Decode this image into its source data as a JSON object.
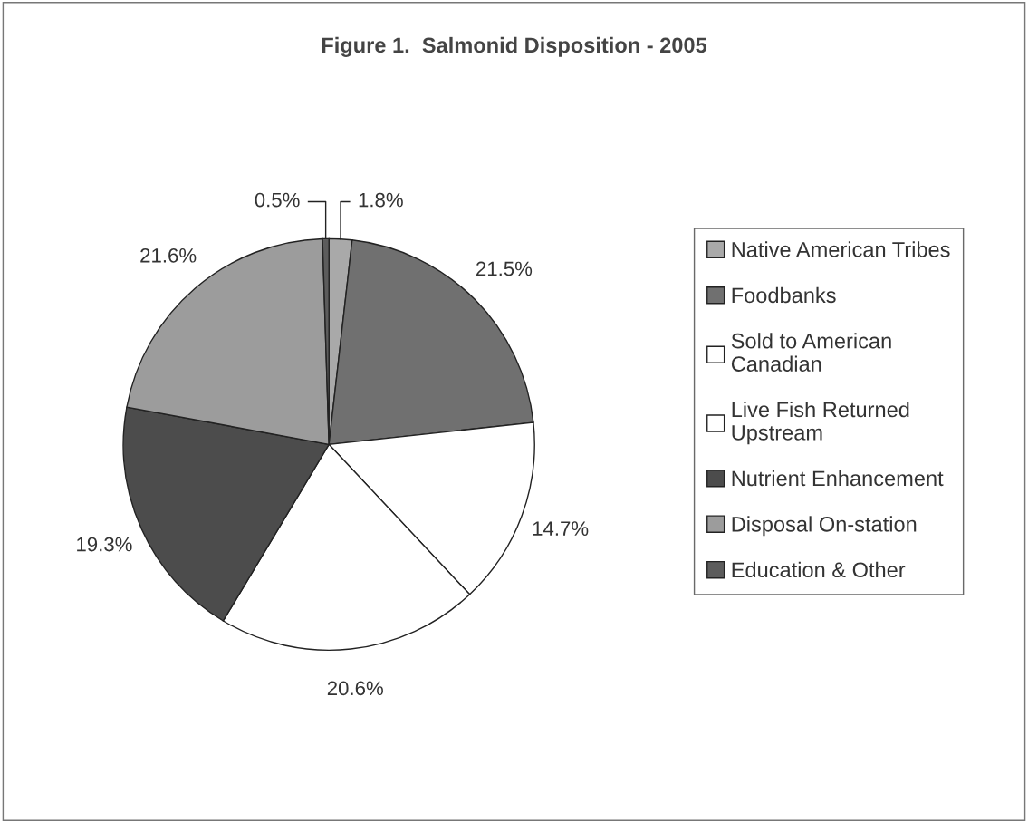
{
  "chart_data": {
    "type": "pie",
    "title": "Figure 1.  Salmonid Disposition - 2005",
    "categories": [
      "Native American Tribes",
      "Foodbanks",
      "Sold to American\nCanadian",
      "Live Fish Returned\nUpstream",
      "Nutrient Enhancement",
      "Disposal On-station",
      "Education & Other"
    ],
    "values": [
      1.8,
      21.5,
      14.7,
      20.6,
      19.3,
      21.6,
      0.5
    ],
    "value_labels": [
      "1.8%",
      "21.5%",
      "14.7%",
      "20.6%",
      "19.3%",
      "21.6%",
      "0.5%"
    ],
    "colors": [
      "#a9a9a9",
      "#707070",
      "#ffffff",
      "#ffffff",
      "#4c4c4c",
      "#9c9c9c",
      "#5c5c5c"
    ],
    "legend": "right"
  }
}
